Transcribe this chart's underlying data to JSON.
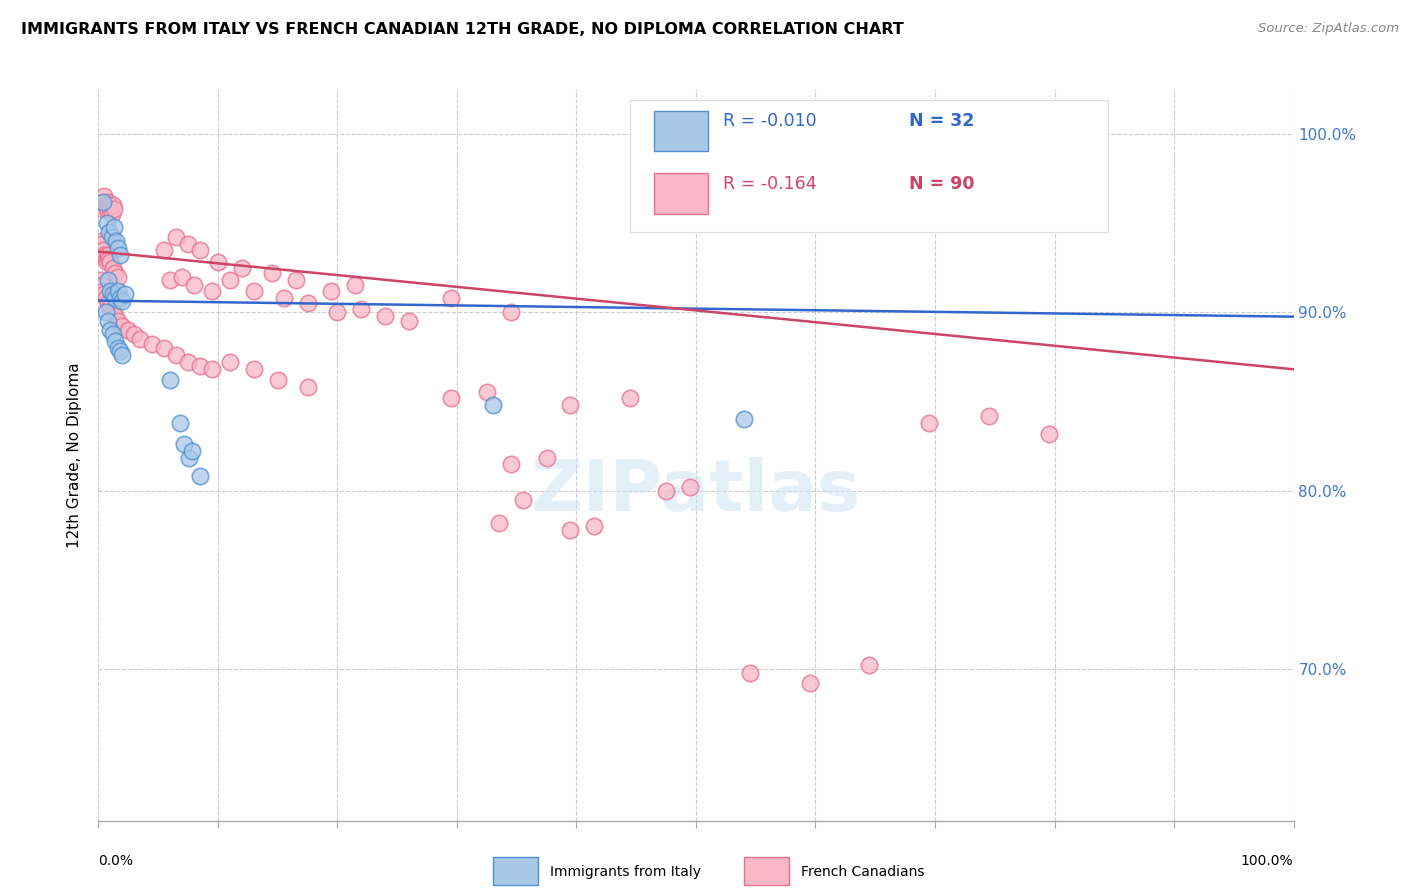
{
  "title": "IMMIGRANTS FROM ITALY VS FRENCH CANADIAN 12TH GRADE, NO DIPLOMA CORRELATION CHART",
  "source": "Source: ZipAtlas.com",
  "ylabel": "12th Grade, No Diploma",
  "legend_blue_r": "R = -0.010",
  "legend_blue_n": "N = 32",
  "legend_pink_r": "R = -0.164",
  "legend_pink_n": "N = 90",
  "legend_blue_label": "Immigrants from Italy",
  "legend_pink_label": "French Canadians",
  "xlim": [
    0.0,
    1.0
  ],
  "ylim": [
    0.615,
    1.025
  ],
  "yticks": [
    0.7,
    0.8,
    0.9,
    1.0
  ],
  "ytick_labels": [
    "70.0%",
    "80.0%",
    "90.0%",
    "100.0%"
  ],
  "blue_scatter_color": "#a8c8e8",
  "blue_edge_color": "#5090d0",
  "pink_scatter_color": "#f8b8c8",
  "pink_edge_color": "#e87090",
  "blue_line_color": "#3366cc",
  "pink_line_color": "#cc4466",
  "blue_scatter": [
    [
      0.004,
      0.962
    ],
    [
      0.007,
      0.95
    ],
    [
      0.009,
      0.945
    ],
    [
      0.011,
      0.942
    ],
    [
      0.013,
      0.948
    ],
    [
      0.015,
      0.94
    ],
    [
      0.016,
      0.936
    ],
    [
      0.018,
      0.932
    ],
    [
      0.008,
      0.918
    ],
    [
      0.01,
      0.912
    ],
    [
      0.012,
      0.91
    ],
    [
      0.014,
      0.908
    ],
    [
      0.016,
      0.912
    ],
    [
      0.018,
      0.908
    ],
    [
      0.02,
      0.906
    ],
    [
      0.022,
      0.91
    ],
    [
      0.006,
      0.9
    ],
    [
      0.008,
      0.895
    ],
    [
      0.01,
      0.89
    ],
    [
      0.012,
      0.888
    ],
    [
      0.014,
      0.884
    ],
    [
      0.016,
      0.88
    ],
    [
      0.018,
      0.878
    ],
    [
      0.02,
      0.876
    ],
    [
      0.06,
      0.862
    ],
    [
      0.068,
      0.838
    ],
    [
      0.072,
      0.826
    ],
    [
      0.076,
      0.818
    ],
    [
      0.078,
      0.822
    ],
    [
      0.085,
      0.808
    ],
    [
      0.33,
      0.848
    ],
    [
      0.54,
      0.84
    ]
  ],
  "pink_scatter": [
    [
      0.002,
      0.96
    ],
    [
      0.003,
      0.962
    ],
    [
      0.004,
      0.958
    ],
    [
      0.005,
      0.965
    ],
    [
      0.006,
      0.96
    ],
    [
      0.007,
      0.958
    ],
    [
      0.008,
      0.962
    ],
    [
      0.009,
      0.96
    ],
    [
      0.01,
      0.958
    ],
    [
      0.011,
      0.955
    ],
    [
      0.012,
      0.96
    ],
    [
      0.013,
      0.958
    ],
    [
      0.002,
      0.94
    ],
    [
      0.003,
      0.938
    ],
    [
      0.004,
      0.935
    ],
    [
      0.005,
      0.932
    ],
    [
      0.006,
      0.93
    ],
    [
      0.007,
      0.928
    ],
    [
      0.008,
      0.932
    ],
    [
      0.009,
      0.93
    ],
    [
      0.01,
      0.928
    ],
    [
      0.012,
      0.925
    ],
    [
      0.014,
      0.922
    ],
    [
      0.016,
      0.92
    ],
    [
      0.002,
      0.918
    ],
    [
      0.003,
      0.915
    ],
    [
      0.004,
      0.912
    ],
    [
      0.005,
      0.91
    ],
    [
      0.006,
      0.908
    ],
    [
      0.008,
      0.905
    ],
    [
      0.01,
      0.903
    ],
    [
      0.012,
      0.9
    ],
    [
      0.014,
      0.898
    ],
    [
      0.016,
      0.895
    ],
    [
      0.02,
      0.892
    ],
    [
      0.025,
      0.89
    ],
    [
      0.03,
      0.888
    ],
    [
      0.035,
      0.885
    ],
    [
      0.045,
      0.882
    ],
    [
      0.055,
      0.88
    ],
    [
      0.065,
      0.876
    ],
    [
      0.075,
      0.872
    ],
    [
      0.085,
      0.87
    ],
    [
      0.095,
      0.868
    ],
    [
      0.11,
      0.872
    ],
    [
      0.13,
      0.868
    ],
    [
      0.15,
      0.862
    ],
    [
      0.175,
      0.858
    ],
    [
      0.06,
      0.918
    ],
    [
      0.07,
      0.92
    ],
    [
      0.08,
      0.915
    ],
    [
      0.095,
      0.912
    ],
    [
      0.11,
      0.918
    ],
    [
      0.13,
      0.912
    ],
    [
      0.155,
      0.908
    ],
    [
      0.175,
      0.905
    ],
    [
      0.2,
      0.9
    ],
    [
      0.22,
      0.902
    ],
    [
      0.24,
      0.898
    ],
    [
      0.26,
      0.895
    ],
    [
      0.055,
      0.935
    ],
    [
      0.065,
      0.942
    ],
    [
      0.075,
      0.938
    ],
    [
      0.085,
      0.935
    ],
    [
      0.1,
      0.928
    ],
    [
      0.12,
      0.925
    ],
    [
      0.145,
      0.922
    ],
    [
      0.165,
      0.918
    ],
    [
      0.195,
      0.912
    ],
    [
      0.215,
      0.915
    ],
    [
      0.295,
      0.908
    ],
    [
      0.345,
      0.9
    ],
    [
      0.295,
      0.852
    ],
    [
      0.325,
      0.855
    ],
    [
      0.395,
      0.848
    ],
    [
      0.445,
      0.852
    ],
    [
      0.345,
      0.815
    ],
    [
      0.375,
      0.818
    ],
    [
      0.395,
      0.778
    ],
    [
      0.415,
      0.78
    ],
    [
      0.335,
      0.782
    ],
    [
      0.355,
      0.795
    ],
    [
      0.495,
      0.802
    ],
    [
      0.475,
      0.8
    ],
    [
      0.545,
      0.698
    ],
    [
      0.595,
      0.692
    ],
    [
      0.645,
      0.702
    ],
    [
      0.695,
      0.838
    ],
    [
      0.745,
      0.842
    ],
    [
      0.795,
      0.832
    ]
  ],
  "blue_trend": [
    0.0,
    0.9065,
    1.0,
    0.8975
  ],
  "pink_trend": [
    0.0,
    0.934,
    1.0,
    0.868
  ]
}
